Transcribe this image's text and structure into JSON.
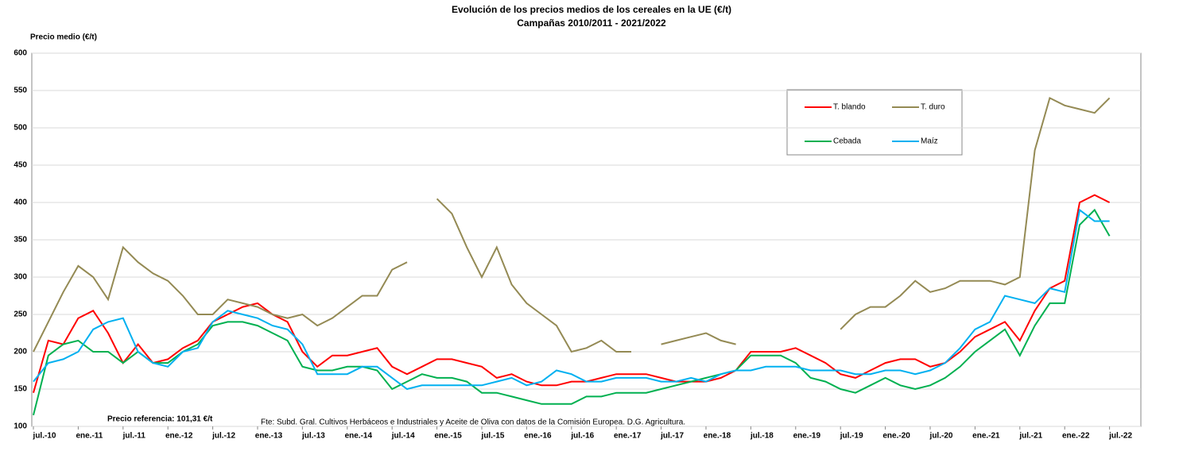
{
  "chart_data": {
    "type": "line",
    "title": "Evolución de los precios medios de los cereales en la UE (€/t)",
    "subtitle": "Campañas 2010/2011 - 2021/2022",
    "y_label": "Precio medio (€/t)",
    "annotations": [
      "Precio referencia: 101,31 €/t",
      "Fte: Subd. Gral. Cultivos Herbáceos e Industriales  y Aceite de Oliva con datos de la Comisión Europea. D.G. Agricultura."
    ],
    "categories": [
      "jul.-10",
      null,
      null,
      "ene.-11",
      null,
      null,
      "jul.-11",
      null,
      null,
      "ene.-12",
      null,
      null,
      "jul.-12",
      null,
      null,
      "ene.-13",
      null,
      null,
      "jul.-13",
      null,
      null,
      "ene.-14",
      null,
      null,
      "jul.-14",
      null,
      null,
      "ene.-15",
      null,
      null,
      "jul.-15",
      null,
      null,
      "ene.-16",
      null,
      null,
      "jul.-16",
      null,
      null,
      "ene.-17",
      null,
      null,
      "jul.-17",
      null,
      null,
      "ene.-18",
      null,
      null,
      "jul.-18",
      null,
      null,
      "ene.-19",
      null,
      null,
      "jul.-19",
      null,
      null,
      "ene.-20",
      null,
      null,
      "jul.-20",
      null,
      null,
      "ene.-21",
      null,
      null,
      "jul.-21",
      null,
      null,
      "ene.-22",
      null,
      null,
      "jul.-22"
    ],
    "series": [
      {
        "name": "T. blando",
        "color": "#ff0000",
        "values": [
          145,
          215,
          210,
          245,
          255,
          225,
          185,
          210,
          185,
          190,
          205,
          215,
          240,
          250,
          260,
          265,
          250,
          240,
          200,
          180,
          195,
          195,
          200,
          205,
          180,
          170,
          180,
          190,
          190,
          185,
          180,
          165,
          170,
          160,
          155,
          155,
          160,
          160,
          165,
          170,
          170,
          170,
          165,
          160,
          160,
          160,
          165,
          175,
          200,
          200,
          200,
          205,
          195,
          185,
          170,
          165,
          175,
          185,
          190,
          190,
          180,
          185,
          200,
          220,
          230,
          240,
          215,
          255,
          285,
          295,
          400,
          410,
          400
        ]
      },
      {
        "name": "T. duro",
        "color": "#948a54",
        "values": [
          200,
          240,
          280,
          315,
          300,
          270,
          340,
          320,
          305,
          295,
          275,
          250,
          250,
          270,
          265,
          260,
          250,
          245,
          250,
          235,
          245,
          260,
          275,
          275,
          310,
          320,
          null,
          405,
          385,
          340,
          300,
          340,
          290,
          265,
          250,
          235,
          200,
          205,
          215,
          200,
          200,
          null,
          210,
          215,
          220,
          225,
          215,
          210,
          null,
          null,
          null,
          null,
          null,
          null,
          230,
          250,
          260,
          260,
          275,
          295,
          280,
          285,
          295,
          295,
          295,
          290,
          300,
          470,
          540,
          530,
          525,
          520,
          540
        ]
      },
      {
        "name": "Cebada",
        "color": "#00b050",
        "values": [
          115,
          195,
          210,
          215,
          200,
          200,
          185,
          200,
          185,
          185,
          200,
          210,
          235,
          240,
          240,
          235,
          225,
          215,
          180,
          175,
          175,
          180,
          180,
          175,
          150,
          160,
          170,
          165,
          165,
          160,
          145,
          145,
          140,
          135,
          130,
          130,
          130,
          140,
          140,
          145,
          145,
          145,
          150,
          155,
          160,
          165,
          170,
          175,
          195,
          195,
          195,
          185,
          165,
          160,
          150,
          145,
          155,
          165,
          155,
          150,
          155,
          165,
          180,
          200,
          215,
          230,
          195,
          235,
          265,
          265,
          370,
          390,
          355
        ]
      },
      {
        "name": "Maíz",
        "color": "#00b0f0",
        "values": [
          160,
          185,
          190,
          200,
          230,
          240,
          245,
          200,
          185,
          180,
          200,
          205,
          240,
          255,
          250,
          245,
          235,
          230,
          210,
          170,
          170,
          170,
          180,
          180,
          165,
          150,
          155,
          155,
          155,
          155,
          155,
          160,
          165,
          155,
          160,
          175,
          170,
          160,
          160,
          165,
          165,
          165,
          160,
          160,
          165,
          160,
          170,
          175,
          175,
          180,
          180,
          180,
          175,
          175,
          175,
          170,
          170,
          175,
          175,
          170,
          175,
          185,
          205,
          230,
          240,
          275,
          270,
          265,
          285,
          280,
          390,
          375,
          375
        ]
      }
    ],
    "ylim": [
      100,
      600
    ],
    "yticks": [
      100,
      150,
      200,
      250,
      300,
      350,
      400,
      450,
      500,
      550,
      600
    ],
    "grid": true,
    "legend": "upper right"
  }
}
